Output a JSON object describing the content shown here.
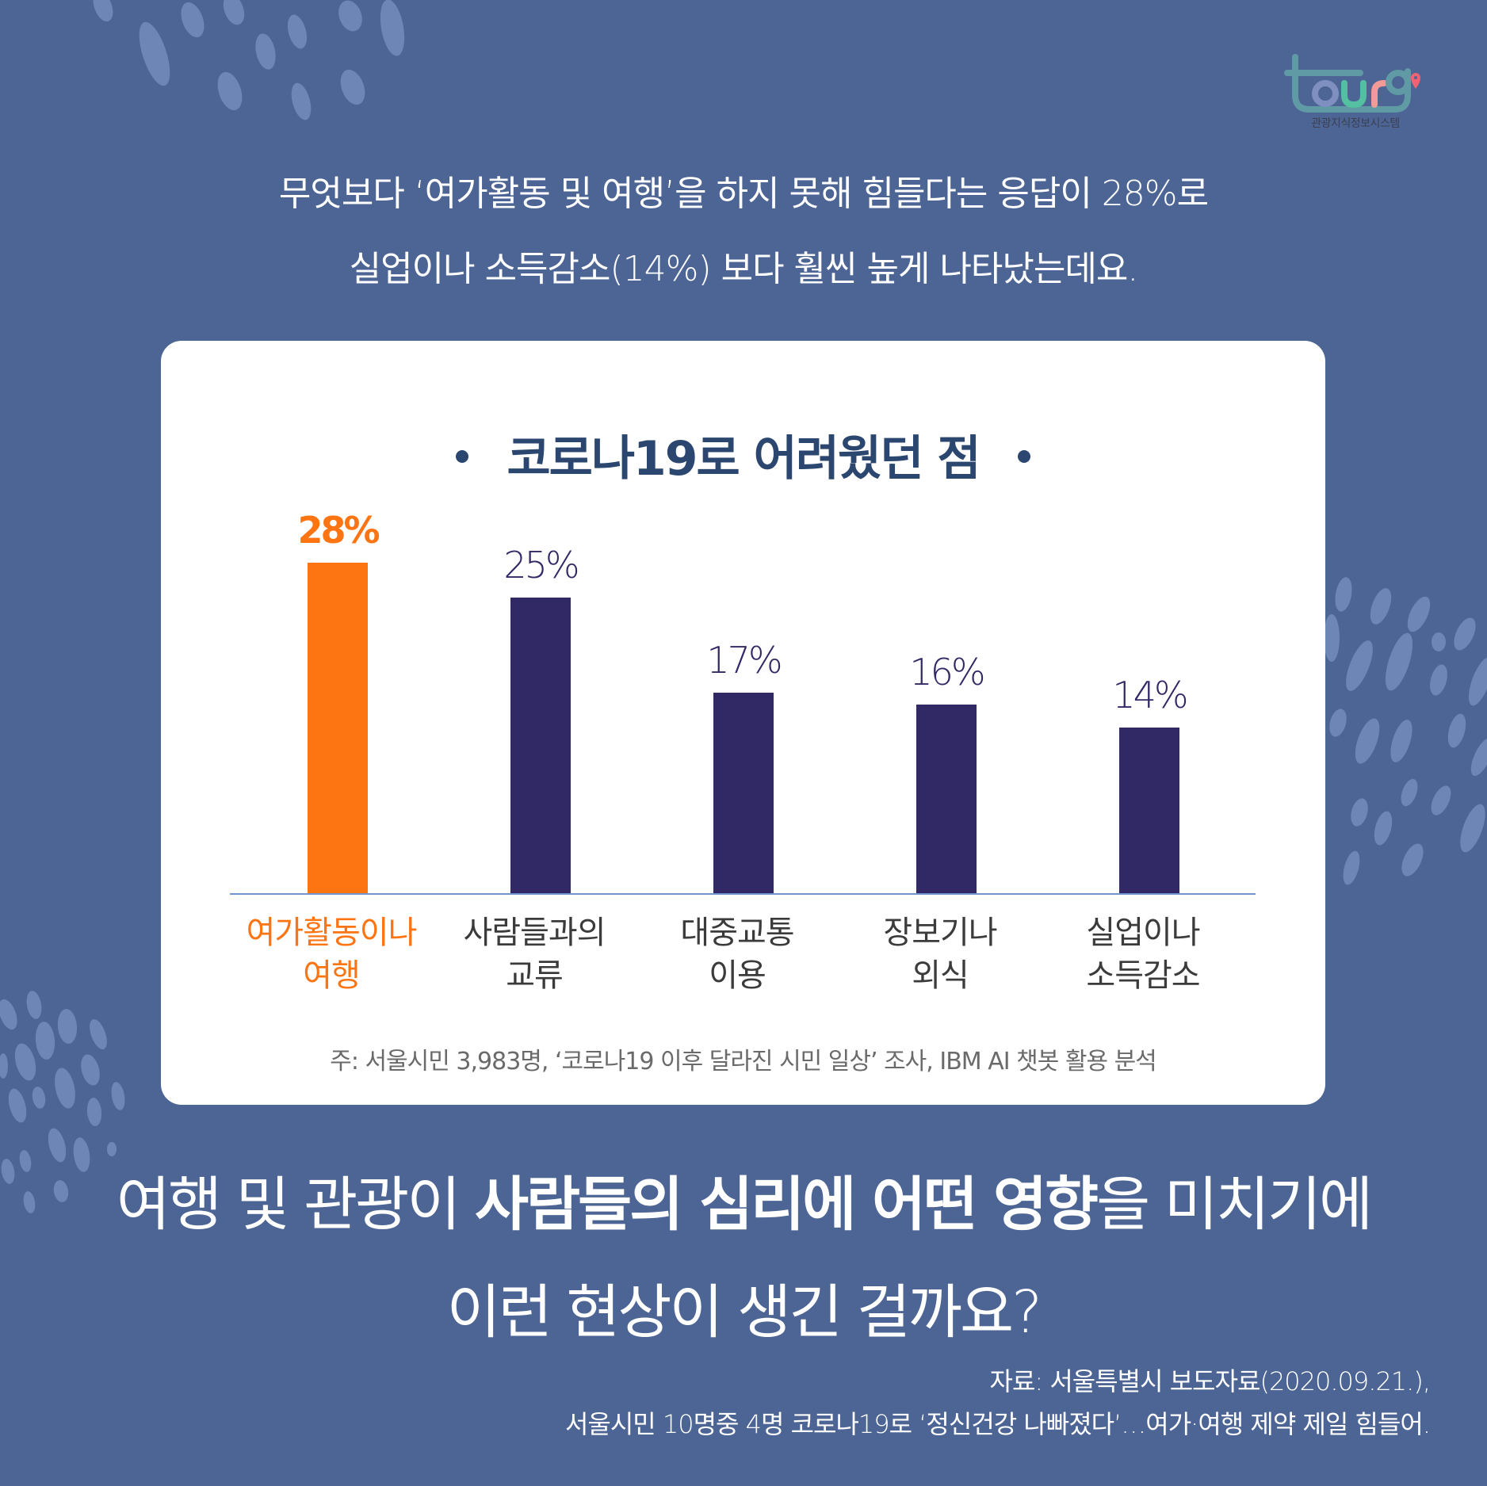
{
  "logo": {
    "wordmark": "tour9",
    "subtitle": "관광지식정보시스템",
    "colors": {
      "frame": "#5f9aa5",
      "o": "#7e8fc0",
      "u": "#54bfa1",
      "r": "#f29a97",
      "pin": "#ee6470"
    }
  },
  "intro": {
    "line1": "무엇보다 ‘여가활동 및 여행’을 하지 못해 힘들다는 응답이 28%로",
    "line2": "실업이나 소득감소(14%) 보다 훨씬 높게 나타났는데요."
  },
  "card": {
    "title": "코로나19로 어려웠던 점",
    "note": "주: 서울시민 3,983명, ‘코로나19 이후 달라진 시민 일상’ 조사, IBM AI 챗봇 활용 분석"
  },
  "chart_data": {
    "type": "bar",
    "title": "코로나19로 어려웠던 점",
    "categories": [
      "여가활동이나 여행",
      "사람들과의 교류",
      "대중교통 이용",
      "장보기나 외식",
      "실업이나 소득감소"
    ],
    "category_lines": [
      [
        "여가활동이나",
        "여행"
      ],
      [
        "사람들과의",
        "교류"
      ],
      [
        "대중교통",
        "이용"
      ],
      [
        "장보기나",
        "외식"
      ],
      [
        "실업이나",
        "소득감소"
      ]
    ],
    "values": [
      28,
      25,
      17,
      16,
      14
    ],
    "value_labels": [
      "28%",
      "25%",
      "17%",
      "16%",
      "14%"
    ],
    "unit": "%",
    "highlight_index": 0,
    "colors": {
      "highlight": "#fd7413",
      "default": "#302965",
      "baseline": "#6e97cf"
    },
    "xlabel": "",
    "ylabel": "",
    "ylim": [
      0,
      30
    ],
    "grid": false,
    "legend": null,
    "note": "주: 서울시민 3,983명, ‘코로나19 이후 달라진 시민 일상’ 조사, IBM AI 챗봇 활용 분석"
  },
  "question": {
    "line1_pre": "여행 및 관광이 ",
    "line1_bold": "사람들의 심리에 어떤 영향",
    "line1_post": "을 미치기에",
    "line2": "이런 현상이 생긴 걸까요?"
  },
  "source": {
    "line1": "자료: 서울특별시 보도자료(2020.09.21.),",
    "line2": "서울시민 10명중 4명 코로나19로 ‘정신건강 나빠졌다’…여가·여행 제약 제일 힘들어."
  },
  "theme": {
    "background": "#4d6594",
    "decoration": "#6d86b6",
    "card": "#ffffff",
    "title": "#2c476f"
  }
}
